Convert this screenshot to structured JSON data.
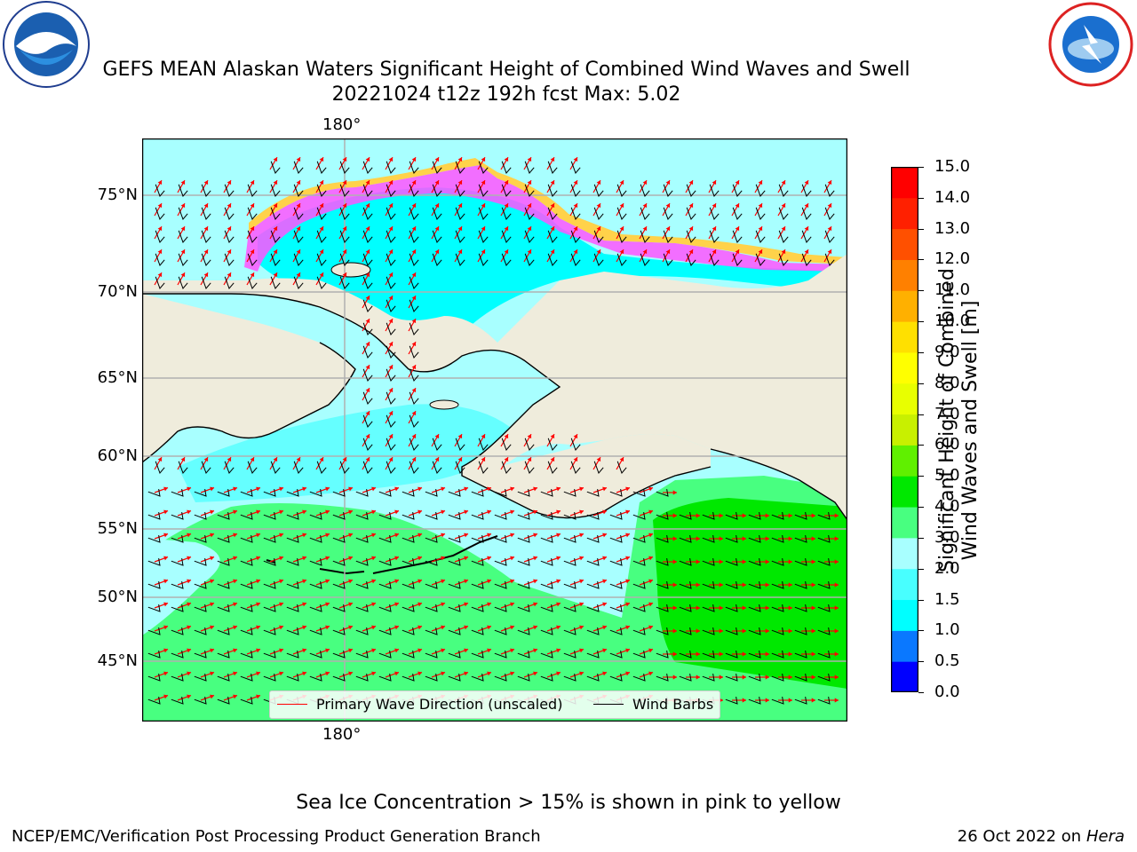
{
  "title_line1": "GEFS MEAN Alaskan Waters Significant Height of Combined Wind Waves and Swell",
  "title_line2": "20221024 t12z 192h fcst    Max: 5.02",
  "map": {
    "lon_label_top": "180°",
    "lon_label_bottom": "180°",
    "lat_labels": [
      "75°N",
      "70°N",
      "65°N",
      "60°N",
      "55°N",
      "50°N",
      "45°N"
    ],
    "colors": {
      "land": "#efecdc",
      "grid": "#b0b0b0",
      "coast": "#000000",
      "wave_arrow": "#ff0000",
      "wind_barb": "#000000"
    }
  },
  "legend": {
    "wave_label": "Primary Wave Direction (unscaled)",
    "barb_label": "Wind Barbs"
  },
  "colorbar": {
    "label_line1": "Significant Height of Combined",
    "label_line2": "Wind Waves and Swell [m]",
    "ticks": [
      "0.0",
      "0.5",
      "1.0",
      "1.5",
      "2.0",
      "3.0",
      "4.0",
      "5.0",
      "6.0",
      "7.0",
      "8.0",
      "9.0",
      "10.0",
      "11.0",
      "12.0",
      "13.0",
      "14.0",
      "15.0"
    ],
    "colors": [
      "#0000ff",
      "#0a78ff",
      "#00ffff",
      "#48ffff",
      "#a8ffff",
      "#48ff80",
      "#00e800",
      "#60f000",
      "#c8f000",
      "#e8ff00",
      "#ffff00",
      "#ffe000",
      "#ffb000",
      "#ff8000",
      "#ff5000",
      "#ff2000",
      "#ff0000"
    ]
  },
  "footer": {
    "sea_ice_note": "Sea Ice Concentration > 15% is shown in pink to yellow",
    "left": "NCEP/EMC/Verification Post Processing Product Generation Branch",
    "date": "26 Oct 2022 on ",
    "machine": "Hera"
  }
}
